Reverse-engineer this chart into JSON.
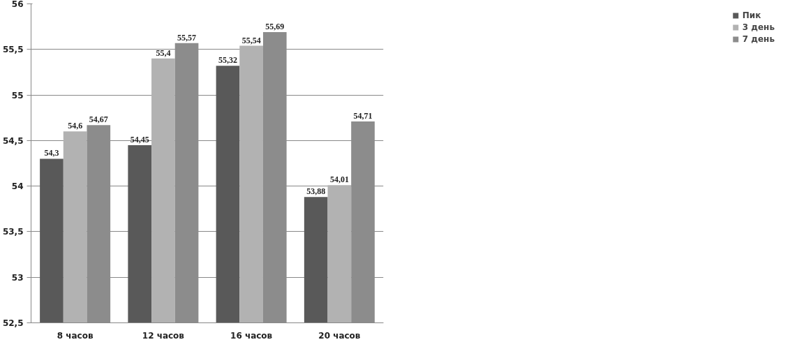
{
  "chart_data": {
    "type": "bar",
    "categories": [
      "8 часов",
      "12 часов",
      "16 часов",
      "20 часов"
    ],
    "series": [
      {
        "name": "Пик",
        "color": "#595959",
        "values": [
          54.3,
          54.45,
          55.32,
          53.88
        ],
        "value_labels": [
          "54,3",
          "54,45",
          "55,32",
          "53,88"
        ]
      },
      {
        "name": "3 день",
        "color": "#b2b2b2",
        "values": [
          54.6,
          55.4,
          55.54,
          54.01
        ],
        "value_labels": [
          "54,6",
          "55,4",
          "55,54",
          "54,01"
        ]
      },
      {
        "name": "7 день",
        "color": "#8c8c8c",
        "values": [
          54.67,
          55.57,
          55.69,
          54.71
        ],
        "value_labels": [
          "54,67",
          "55,57",
          "55,69",
          "54,71"
        ]
      }
    ],
    "ylim": [
      52.5,
      56
    ],
    "yticks": [
      {
        "value": 52.5,
        "label": "52,5"
      },
      53,
      {
        "value": 53.5,
        "label": "53,5"
      },
      54,
      {
        "value": 54.5,
        "label": "54,5"
      },
      55,
      {
        "value": 55.5,
        "label": "55,5"
      },
      56
    ],
    "grid": "y",
    "legend": "right"
  }
}
